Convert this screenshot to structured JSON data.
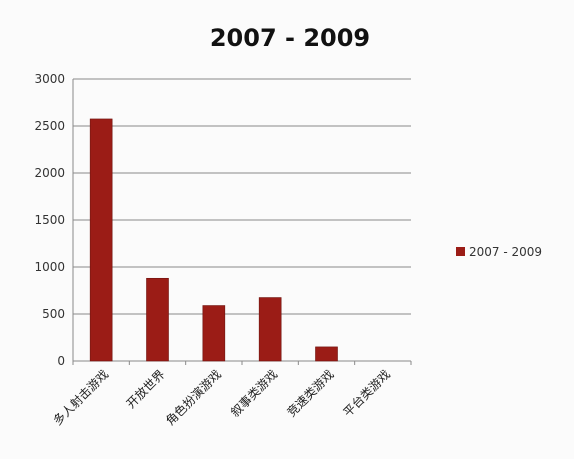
{
  "chart_data": {
    "type": "bar",
    "title": "2007 - 2009",
    "categories": [
      "多人射击游戏",
      "开放世界",
      "角色扮演游戏",
      "叙事类游戏",
      "竞速类游戏",
      "平台类游戏"
    ],
    "series": [
      {
        "name": "2007 - 2009",
        "values": [
          2575,
          880,
          590,
          675,
          150,
          0
        ],
        "color": "#9b1c16"
      }
    ],
    "ylim": [
      0,
      3000
    ],
    "yticks": [
      0,
      500,
      1000,
      1500,
      2000,
      2500,
      3000
    ],
    "grid": true,
    "legend_position": "right"
  }
}
